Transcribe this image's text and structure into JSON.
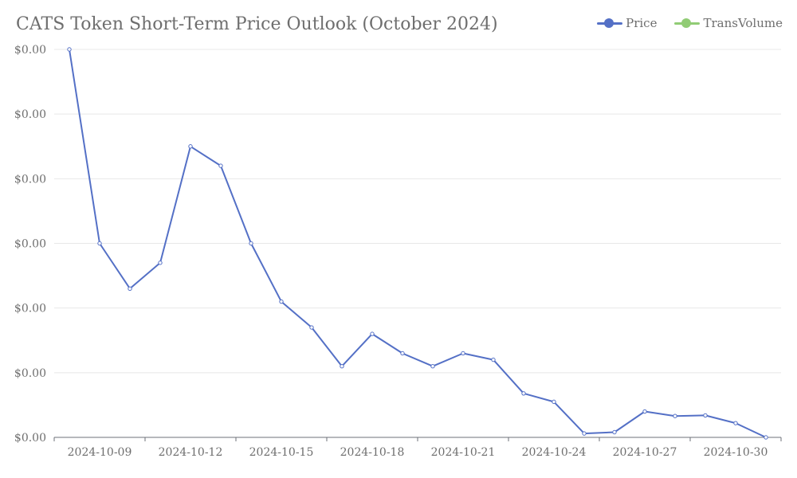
{
  "chart_data": {
    "type": "line",
    "title": "CATS Token Short-Term Price Outlook (October 2024)",
    "xlabel": "",
    "ylabel": "",
    "legend": {
      "placement": "top-right",
      "entries": [
        {
          "label": "Price",
          "color": "#5470c6"
        },
        {
          "label": "TransVolume",
          "color": "#91cc75"
        }
      ]
    },
    "x": [
      "2024-10-08",
      "2024-10-09",
      "2024-10-10",
      "2024-10-11",
      "2024-10-12",
      "2024-10-13",
      "2024-10-14",
      "2024-10-15",
      "2024-10-16",
      "2024-10-17",
      "2024-10-18",
      "2024-10-19",
      "2024-10-20",
      "2024-10-21",
      "2024-10-22",
      "2024-10-23",
      "2024-10-24",
      "2024-10-25",
      "2024-10-26",
      "2024-10-27",
      "2024-10-28",
      "2024-10-29",
      "2024-10-30",
      "2024-10-31"
    ],
    "x_tick_labels": [
      "2024-10-09",
      "2024-10-12",
      "2024-10-15",
      "2024-10-18",
      "2024-10-21",
      "2024-10-24",
      "2024-10-27",
      "2024-10-30"
    ],
    "y_tick_labels": [
      "$0.00",
      "$0.00",
      "$0.00",
      "$0.00",
      "$0.00",
      "$0.00",
      "$0.00"
    ],
    "series": [
      {
        "name": "Price",
        "color": "#5470c6",
        "values": [
          6e-05,
          3e-05,
          2.3e-05,
          2.7e-05,
          4.5e-05,
          4.2e-05,
          3e-05,
          2.1e-05,
          1.7e-05,
          1.1e-05,
          1.6e-05,
          1.3e-05,
          1.1e-05,
          1.3e-05,
          1.2e-05,
          6.8e-06,
          5.5e-06,
          6e-07,
          8e-07,
          4e-06,
          3.3e-06,
          3.4e-06,
          2.2e-06,
          0.0
        ]
      }
    ],
    "ylim": [
      0,
      6e-05
    ],
    "grid": true
  }
}
